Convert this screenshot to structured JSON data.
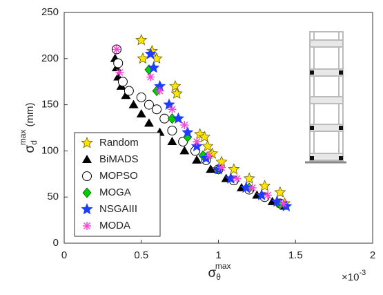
{
  "chart_data": {
    "type": "scatter",
    "xlabel": {
      "base": "σ",
      "sub": "θ",
      "sup": "max"
    },
    "ylabel": {
      "base": "σ",
      "sub": "d",
      "sup": "max",
      "unit": "(mm)"
    },
    "x_multiplier": {
      "base": "×10",
      "sup": "-3"
    },
    "xlim": [
      0,
      2
    ],
    "xticks": [
      0,
      0.5,
      1,
      1.5,
      2
    ],
    "ylim": [
      0,
      250
    ],
    "yticks": [
      0,
      50,
      100,
      150,
      200,
      250
    ],
    "legend": "lower left",
    "series": [
      {
        "name": "Random",
        "color": "#ffe600",
        "marker": "star",
        "x": [
          0.5,
          0.51,
          0.57,
          0.6,
          0.72,
          0.73,
          0.88,
          0.91,
          0.93,
          0.96,
          1.02,
          1.1,
          1.2,
          1.3,
          1.4,
          1.43
        ],
        "values": [
          220,
          200,
          208,
          200,
          170,
          162,
          118,
          115,
          105,
          97,
          88,
          80,
          70,
          62,
          55,
          43
        ]
      },
      {
        "name": "BiMADS",
        "color": "#000000",
        "marker": "triangle",
        "x": [
          0.33,
          0.34,
          0.35,
          0.37,
          0.4,
          0.45,
          0.5,
          0.55,
          0.62,
          0.7,
          0.78,
          0.86,
          0.95,
          1.05,
          1.15,
          1.25,
          1.35,
          1.43
        ],
        "values": [
          200,
          190,
          180,
          170,
          160,
          150,
          140,
          130,
          120,
          110,
          100,
          90,
          80,
          70,
          60,
          52,
          45,
          40
        ]
      },
      {
        "name": "MOPSO",
        "color": "#ffffff",
        "marker": "circle",
        "x": [
          0.34,
          0.35,
          0.38,
          0.42,
          0.5,
          0.55,
          0.6,
          0.65,
          0.7,
          0.77,
          0.85,
          0.92,
          1.0,
          1.1,
          1.2,
          1.3,
          1.4
        ],
        "values": [
          210,
          195,
          175,
          165,
          158,
          150,
          145,
          135,
          122,
          110,
          100,
          90,
          80,
          68,
          58,
          50,
          43
        ]
      },
      {
        "name": "MOGA",
        "color": "#00cc00",
        "marker": "diamond",
        "x": [
          0.55,
          0.6,
          0.7,
          0.8,
          0.9,
          1.0,
          1.2,
          1.4
        ],
        "values": [
          188,
          165,
          135,
          115,
          95,
          80,
          60,
          42
        ]
      },
      {
        "name": "NSGAIII",
        "color": "#1f3cff",
        "marker": "star",
        "x": [
          0.56,
          0.58,
          0.62,
          0.68,
          0.74,
          0.8,
          0.86,
          0.92,
          1.0,
          1.08,
          1.18,
          1.28,
          1.38,
          1.44
        ],
        "values": [
          205,
          190,
          170,
          150,
          135,
          120,
          105,
          92,
          80,
          70,
          60,
          52,
          45,
          40
        ]
      },
      {
        "name": "MODA",
        "color": "#ff44dd",
        "marker": "asterisk",
        "x": [
          0.34,
          0.36,
          0.56,
          0.62,
          0.7,
          0.78,
          0.86,
          0.94,
          1.02,
          1.12,
          1.22,
          1.32,
          1.42
        ],
        "values": [
          210,
          185,
          180,
          165,
          145,
          128,
          110,
          95,
          82,
          70,
          60,
          52,
          43
        ]
      }
    ]
  }
}
